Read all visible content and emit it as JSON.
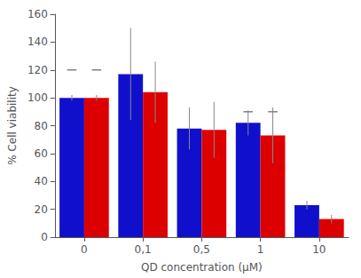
{
  "chart_data": {
    "type": "bar",
    "categories": [
      "0",
      "0,1",
      "0,5",
      "1",
      "10"
    ],
    "series": [
      {
        "color": "#1010cc",
        "values": [
          100,
          117,
          78,
          82,
          23
        ],
        "errors": [
          2,
          33,
          15,
          9,
          3
        ]
      },
      {
        "color": "#dd0000",
        "values": [
          100,
          104,
          77,
          73,
          13
        ],
        "errors": [
          2,
          22,
          20,
          20,
          3
        ]
      }
    ],
    "xlabel": "QD concentration (μM)",
    "ylabel": "% Cell viability",
    "ylim": [
      0,
      160
    ],
    "yticks": [
      0,
      20,
      40,
      60,
      80,
      100,
      120,
      140,
      160
    ],
    "significance_markers": [
      {
        "category": "0",
        "value": 120
      },
      {
        "category": "1",
        "value": 90
      }
    ],
    "grid": false
  }
}
